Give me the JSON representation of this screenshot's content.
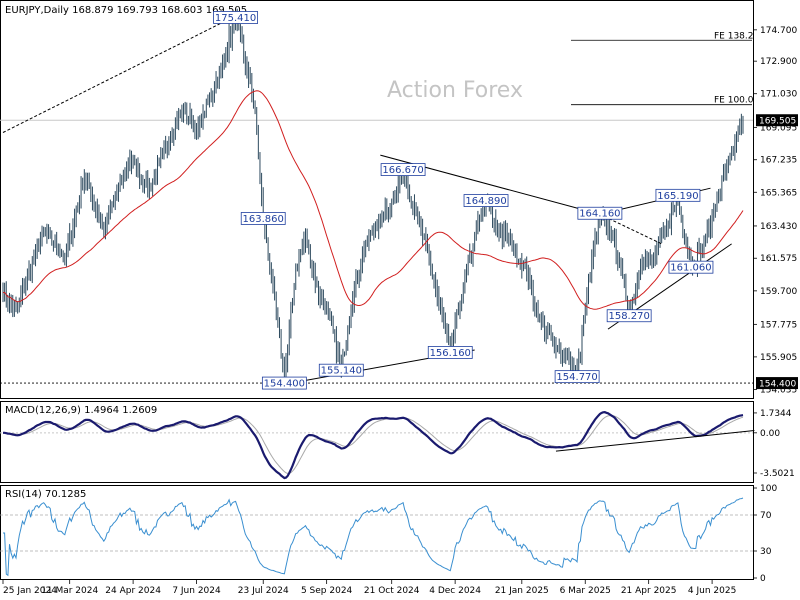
{
  "chart_data": {
    "type": "candlestick",
    "watermark": "Action Forex",
    "main": {
      "header": "EURJPY,Daily  168.879 169.793 168.603 169.505",
      "ylim": [
        153.6,
        176.3
      ],
      "y_ticks": [
        "174.700",
        "172.900",
        "171.030",
        "169.095",
        "167.235",
        "165.365",
        "163.430",
        "161.575",
        "159.700",
        "157.775",
        "155.905",
        "154.035"
      ],
      "y_tick_values": [
        174.7,
        172.9,
        171.03,
        169.095,
        167.235,
        165.365,
        163.43,
        161.575,
        159.7,
        157.775,
        155.905,
        154.035
      ],
      "last_price_label": "169.505",
      "last_price": 169.505,
      "support_label": "154.400",
      "support_price": 154.4,
      "fib_levels": [
        {
          "label": "FE 161.8",
          "price": 176.4
        },
        {
          "label": "FE 138.2",
          "price": 174.1
        },
        {
          "label": "FE 100.0",
          "price": 170.4
        }
      ],
      "price_labels": [
        {
          "text": "175.410",
          "i": 143,
          "price": 175.41
        },
        {
          "text": "163.860",
          "i": 160,
          "price": 163.86
        },
        {
          "text": "154.400",
          "i": 173,
          "price": 154.4
        },
        {
          "text": "155.140",
          "i": 208,
          "price": 155.14
        },
        {
          "text": "166.670",
          "i": 246,
          "price": 166.67
        },
        {
          "text": "164.890",
          "i": 297,
          "price": 164.89
        },
        {
          "text": "156.160",
          "i": 275,
          "price": 156.16
        },
        {
          "text": "164.160",
          "i": 367,
          "price": 164.16
        },
        {
          "text": "154.770",
          "i": 353,
          "price": 154.77
        },
        {
          "text": "165.190",
          "i": 415,
          "price": 165.19
        },
        {
          "text": "158.270",
          "i": 385,
          "price": 158.27
        },
        {
          "text": "161.060",
          "i": 423,
          "price": 161.06
        }
      ],
      "trendlines": [
        {
          "from": [
            0,
            168.8
          ],
          "to": [
            143,
            175.5
          ],
          "style": "dashed"
        },
        {
          "from": [
            232,
            167.5
          ],
          "to": [
            367,
            164.1
          ],
          "style": "solid"
        },
        {
          "from": [
            171,
            154.3
          ],
          "to": [
            290,
            156.3
          ],
          "style": "solid"
        },
        {
          "from": [
            367,
            164.1
          ],
          "to": [
            435,
            165.6
          ],
          "style": "solid"
        },
        {
          "from": [
            372,
            157.5
          ],
          "to": [
            448,
            162.4
          ],
          "style": "solid"
        },
        {
          "from": [
            367,
            164.1
          ],
          "to": [
            405,
            162.4
          ],
          "style": "dashed"
        }
      ]
    },
    "macd": {
      "label": "MACD(12,26,9) 1.4964 1.2609",
      "ylim": [
        -4.2,
        2.6
      ],
      "y_ticks": [
        "1.7344",
        "0.00",
        "-3.5021"
      ],
      "y_tick_values": [
        1.7344,
        0.0,
        -3.5021
      ],
      "trendline": {
        "from": [
          340,
          -1.6
        ],
        "to": [
          462,
          0.2
        ]
      }
    },
    "rsi": {
      "label": "RSI(14) 70.1285",
      "ylim": [
        0,
        100
      ],
      "y_ticks": [
        "100",
        "70",
        "30",
        "0"
      ],
      "y_tick_values": [
        100,
        70,
        30,
        0
      ],
      "levels": [
        70,
        30
      ]
    },
    "x_ticks": [
      {
        "label": "25 Jan 2024",
        "i": 0
      },
      {
        "label": "11 Mar 2024",
        "i": 41
      },
      {
        "label": "24 Apr 2024",
        "i": 80
      },
      {
        "label": "7 Jun 2024",
        "i": 119
      },
      {
        "label": "23 Jul 2024",
        "i": 160
      },
      {
        "label": "5 Sep 2024",
        "i": 199
      },
      {
        "label": "21 Oct 2024",
        "i": 239
      },
      {
        "label": "4 Dec 2024",
        "i": 278
      },
      {
        "label": "21 Jan 2025",
        "i": 319
      },
      {
        "label": "6 Mar 2025",
        "i": 358
      },
      {
        "label": "21 Apr 2025",
        "i": 397
      },
      {
        "label": "4 Jun 2025",
        "i": 436
      }
    ],
    "bars_total": 456,
    "price_path": [
      [
        0,
        159.6
      ],
      [
        8,
        158.6
      ],
      [
        25,
        163.2
      ],
      [
        38,
        161.6
      ],
      [
        50,
        166.3
      ],
      [
        62,
        163.3
      ],
      [
        78,
        167.2
      ],
      [
        90,
        165.6
      ],
      [
        110,
        170.2
      ],
      [
        120,
        169.0
      ],
      [
        135,
        172.7
      ],
      [
        143,
        175.4
      ],
      [
        150,
        172.3
      ],
      [
        155,
        170.0
      ],
      [
        160,
        163.8
      ],
      [
        168,
        158.5
      ],
      [
        173,
        154.6
      ],
      [
        180,
        161.0
      ],
      [
        186,
        162.8
      ],
      [
        194,
        159.5
      ],
      [
        200,
        158.4
      ],
      [
        208,
        155.3
      ],
      [
        214,
        158.8
      ],
      [
        222,
        162.2
      ],
      [
        232,
        163.8
      ],
      [
        240,
        165.0
      ],
      [
        246,
        166.5
      ],
      [
        256,
        163.7
      ],
      [
        266,
        159.8
      ],
      [
        275,
        156.3
      ],
      [
        284,
        160.3
      ],
      [
        291,
        163.2
      ],
      [
        297,
        164.8
      ],
      [
        304,
        163.2
      ],
      [
        312,
        162.5
      ],
      [
        322,
        160.8
      ],
      [
        330,
        158.1
      ],
      [
        340,
        156.4
      ],
      [
        347,
        155.9
      ],
      [
        353,
        154.9
      ],
      [
        358,
        158.8
      ],
      [
        362,
        161.5
      ],
      [
        367,
        163.9
      ],
      [
        375,
        163.0
      ],
      [
        381,
        160.5
      ],
      [
        385,
        158.4
      ],
      [
        392,
        161.2
      ],
      [
        400,
        161.6
      ],
      [
        408,
        163.4
      ],
      [
        415,
        164.9
      ],
      [
        423,
        161.2
      ],
      [
        430,
        162.1
      ],
      [
        438,
        164.6
      ],
      [
        446,
        167.2
      ],
      [
        452,
        168.8
      ],
      [
        455,
        169.5
      ]
    ]
  }
}
